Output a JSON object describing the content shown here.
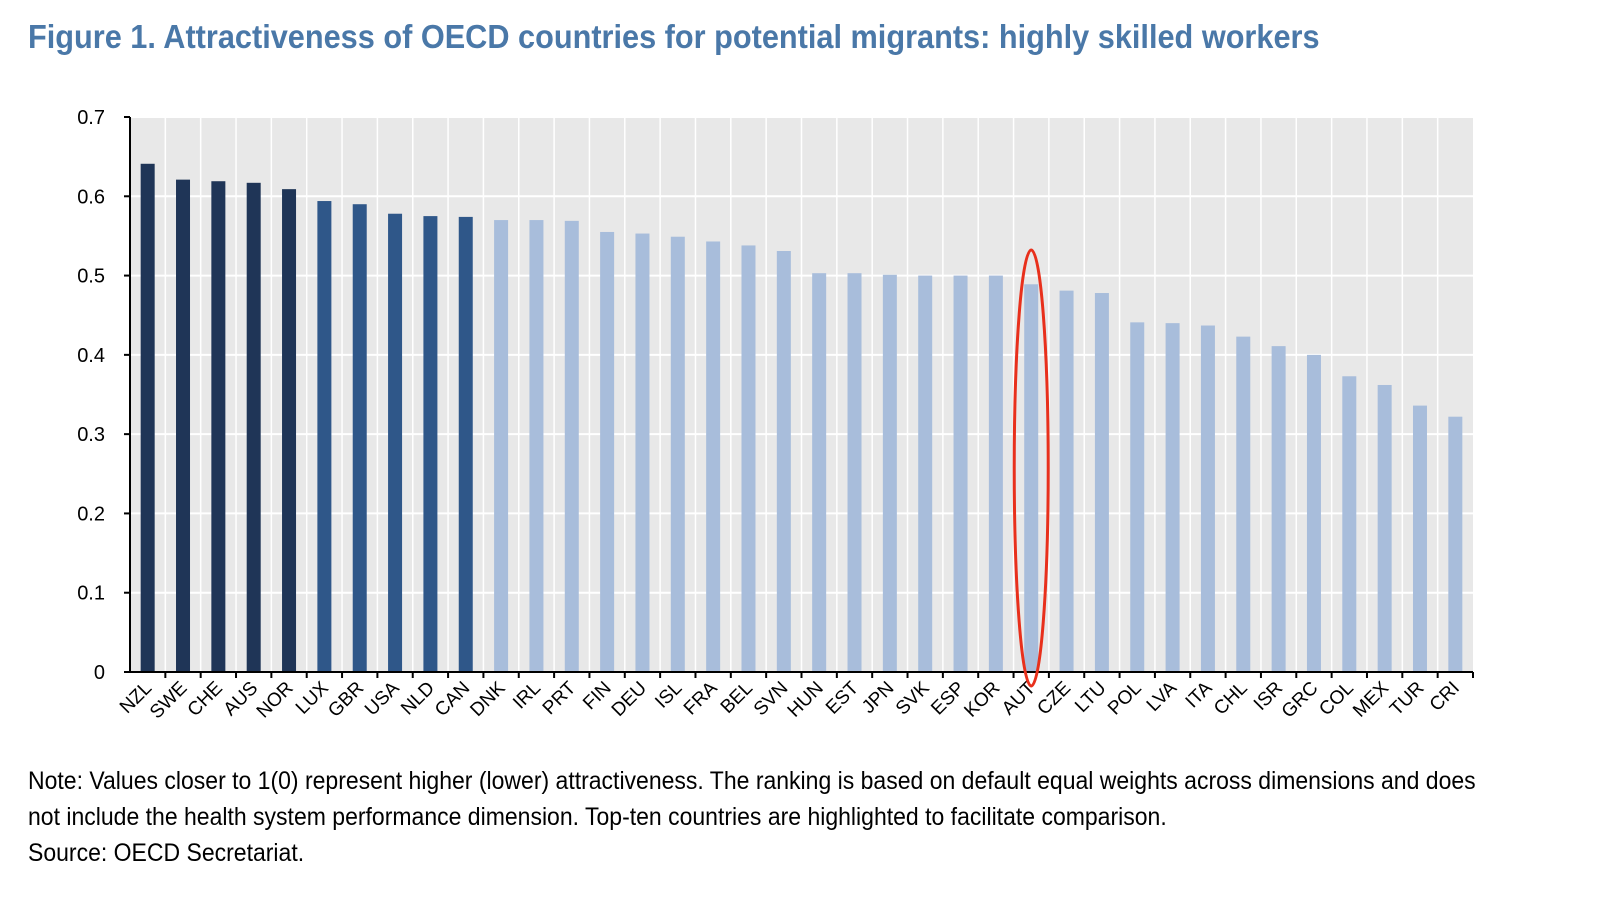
{
  "header": {
    "title": "Figure 1. Attractiveness of OECD countries for potential migrants: highly skilled workers"
  },
  "colors": {
    "title": "#4a78a8",
    "top5": "#1f3557",
    "top10": "#2f5789",
    "others": "#a8bddb",
    "plot_background": "#e8e8e8",
    "gridline": "#ffffff",
    "highlight_ellipse": "#e8301c"
  },
  "chart_data": {
    "type": "bar",
    "categories": [
      "NZL",
      "SWE",
      "CHE",
      "AUS",
      "NOR",
      "LUX",
      "GBR",
      "USA",
      "NLD",
      "CAN",
      "DNK",
      "IRL",
      "PRT",
      "FIN",
      "DEU",
      "ISL",
      "FRA",
      "BEL",
      "SVN",
      "HUN",
      "EST",
      "JPN",
      "SVK",
      "ESP",
      "KOR",
      "AUT",
      "CZE",
      "LTU",
      "POL",
      "LVA",
      "ITA",
      "CHL",
      "ISR",
      "GRC",
      "COL",
      "MEX",
      "TUR",
      "CRI"
    ],
    "values": [
      0.641,
      0.621,
      0.619,
      0.617,
      0.609,
      0.594,
      0.59,
      0.578,
      0.575,
      0.574,
      0.57,
      0.57,
      0.569,
      0.555,
      0.553,
      0.549,
      0.543,
      0.538,
      0.531,
      0.503,
      0.503,
      0.501,
      0.5,
      0.5,
      0.5,
      0.489,
      0.481,
      0.478,
      0.441,
      0.44,
      0.437,
      0.423,
      0.411,
      0.4,
      0.373,
      0.362,
      0.336,
      0.322
    ],
    "bar_color_groups": [
      "top5",
      "top5",
      "top5",
      "top5",
      "top5",
      "top10",
      "top10",
      "top10",
      "top10",
      "top10",
      "others",
      "others",
      "others",
      "others",
      "others",
      "others",
      "others",
      "others",
      "others",
      "others",
      "others",
      "others",
      "others",
      "others",
      "others",
      "others",
      "others",
      "others",
      "others",
      "others",
      "others",
      "others",
      "others",
      "others",
      "others",
      "others",
      "others",
      "others"
    ],
    "ylim": [
      0,
      0.7
    ],
    "yticks": [
      "0",
      "0.1",
      "0.2",
      "0.3",
      "0.4",
      "0.5",
      "0.6",
      "0.7"
    ],
    "grid": true,
    "legend": "none",
    "highlighted_category": "AUT"
  },
  "footer": {
    "note_line1": "Note: Values closer to 1(0) represent higher (lower) attractiveness. The ranking is based on default equal weights across dimensions and does",
    "note_line2": "not include the health system performance dimension. Top-ten countries are highlighted to facilitate comparison.",
    "source": "Source: OECD Secretariat."
  }
}
